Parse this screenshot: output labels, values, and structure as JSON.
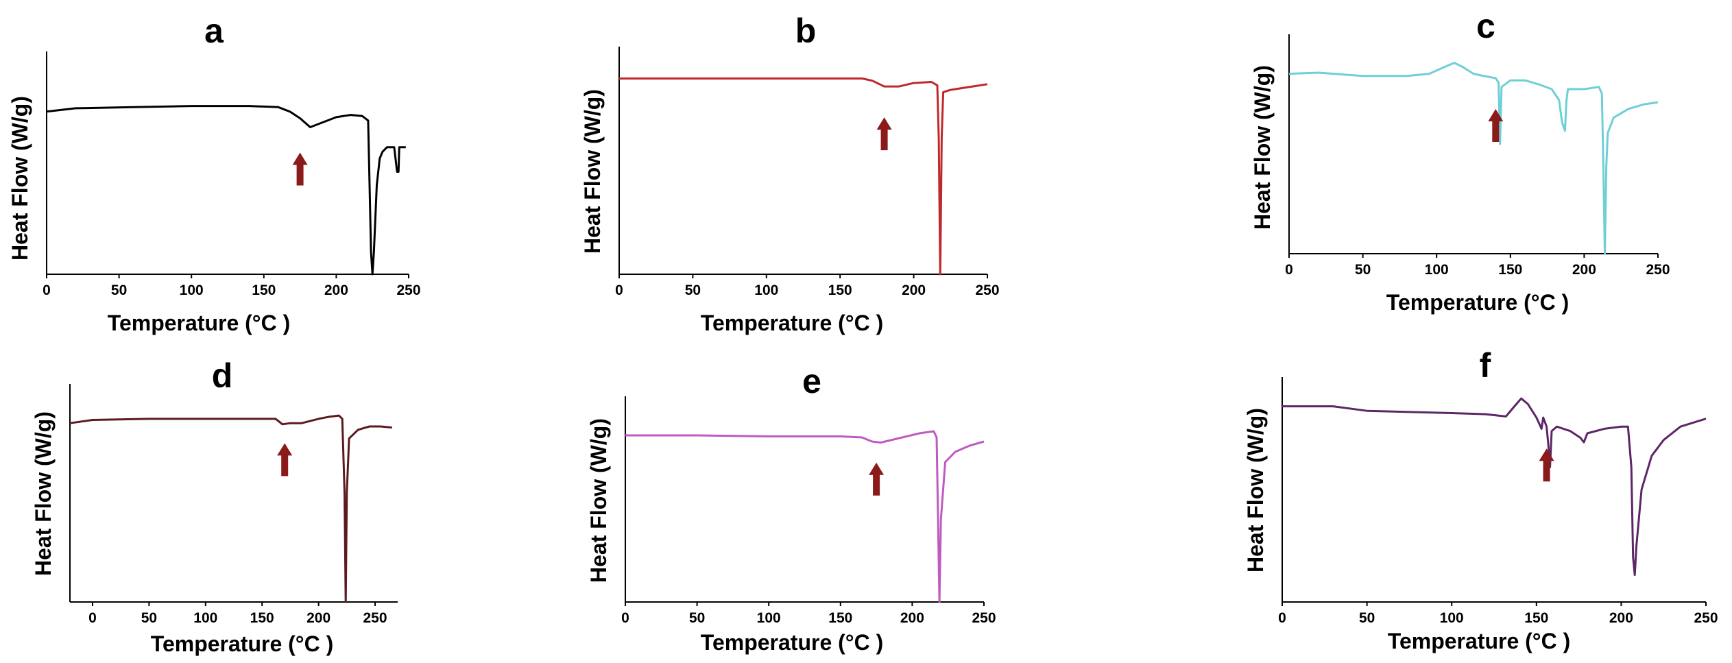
{
  "chart_data": [
    {
      "panel": "a",
      "type": "line",
      "xlabel": "Temperature (°C )",
      "ylabel": "Heat Flow (W/g)",
      "xlim": [
        0,
        250
      ],
      "ylim": [
        0,
        100
      ],
      "x_ticks": [
        0,
        50,
        100,
        150,
        200,
        250
      ],
      "color": "#000000",
      "arrow_x": 175,
      "series": [
        {
          "name": "a",
          "points": [
            [
              0,
              73
            ],
            [
              20,
              74.5
            ],
            [
              60,
              75
            ],
            [
              100,
              75.5
            ],
            [
              140,
              75.5
            ],
            [
              160,
              75
            ],
            [
              168,
              73
            ],
            [
              175,
              70
            ],
            [
              182,
              66
            ],
            [
              190,
              68
            ],
            [
              200,
              70.5
            ],
            [
              210,
              71.5
            ],
            [
              218,
              71
            ],
            [
              222,
              69
            ],
            [
              223,
              40
            ],
            [
              224,
              10
            ],
            [
              225,
              0
            ],
            [
              226,
              10
            ],
            [
              228,
              40
            ],
            [
              230,
              52
            ],
            [
              232,
              55
            ],
            [
              235,
              57
            ],
            [
              240,
              57
            ],
            [
              242,
              46
            ],
            [
              243,
              46
            ],
            [
              243.5,
              57
            ],
            [
              248,
              57
            ]
          ]
        }
      ]
    },
    {
      "panel": "b",
      "type": "line",
      "xlabel": "Temperature (°C )",
      "ylabel": "Heat Flow (W/g)",
      "xlim": [
        0,
        250
      ],
      "ylim": [
        0,
        100
      ],
      "x_ticks": [
        0,
        50,
        100,
        150,
        200,
        250
      ],
      "color": "#c0282c",
      "arrow_x": 180,
      "series": [
        {
          "name": "b",
          "points": [
            [
              0,
              86
            ],
            [
              50,
              86
            ],
            [
              100,
              86
            ],
            [
              150,
              86
            ],
            [
              165,
              86
            ],
            [
              172,
              85
            ],
            [
              180,
              82.5
            ],
            [
              190,
              82.5
            ],
            [
              200,
              84
            ],
            [
              212,
              84.5
            ],
            [
              216,
              83
            ],
            [
              217,
              60
            ],
            [
              218,
              0
            ],
            [
              219,
              60
            ],
            [
              220,
              80
            ],
            [
              225,
              81
            ],
            [
              240,
              82.5
            ],
            [
              250,
              83.5
            ]
          ]
        }
      ]
    },
    {
      "panel": "c",
      "type": "line",
      "xlabel": "Temperature (°C )",
      "ylabel": "Heat Flow (W/g)",
      "xlim": [
        0,
        250
      ],
      "ylim": [
        0,
        100
      ],
      "x_ticks": [
        0,
        50,
        100,
        150,
        200,
        250
      ],
      "color": "#6ecfd6",
      "arrow_x": 140,
      "series": [
        {
          "name": "c",
          "points": [
            [
              0,
              82
            ],
            [
              20,
              82.5
            ],
            [
              50,
              81
            ],
            [
              80,
              81
            ],
            [
              95,
              82
            ],
            [
              105,
              85
            ],
            [
              112,
              87
            ],
            [
              118,
              85
            ],
            [
              125,
              82
            ],
            [
              132,
              81
            ],
            [
              140,
              80
            ],
            [
              142,
              78
            ],
            [
              143,
              50
            ],
            [
              144,
              76
            ],
            [
              150,
              79
            ],
            [
              160,
              79
            ],
            [
              170,
              77
            ],
            [
              178,
              75
            ],
            [
              183,
              70
            ],
            [
              185,
              60
            ],
            [
              187,
              56
            ],
            [
              188,
              70
            ],
            [
              189,
              75
            ],
            [
              200,
              75
            ],
            [
              210,
              76
            ],
            [
              212,
              73
            ],
            [
              213,
              40
            ],
            [
              214,
              0
            ],
            [
              215,
              40
            ],
            [
              216,
              55
            ],
            [
              220,
              62
            ],
            [
              230,
              66
            ],
            [
              240,
              68
            ],
            [
              250,
              69
            ]
          ]
        }
      ]
    },
    {
      "panel": "d",
      "type": "line",
      "xlabel": "Temperature (°C )",
      "ylabel": "Heat Flow (W/g)",
      "xlim": [
        -20,
        270
      ],
      "ylim": [
        0,
        100
      ],
      "x_ticks": [
        0,
        50,
        100,
        150,
        200,
        250
      ],
      "color": "#5a1a1f",
      "arrow_x": 170,
      "series": [
        {
          "name": "d",
          "points": [
            [
              -20,
              82
            ],
            [
              0,
              83.5
            ],
            [
              50,
              84
            ],
            [
              100,
              84
            ],
            [
              150,
              84
            ],
            [
              162,
              84
            ],
            [
              168,
              81.5
            ],
            [
              175,
              82
            ],
            [
              185,
              82
            ],
            [
              200,
              84
            ],
            [
              210,
              85
            ],
            [
              218,
              85.5
            ],
            [
              221,
              84
            ],
            [
              223,
              50
            ],
            [
              224,
              0
            ],
            [
              225,
              50
            ],
            [
              227,
              75
            ],
            [
              235,
              79
            ],
            [
              245,
              80.5
            ],
            [
              255,
              80.5
            ],
            [
              265,
              80
            ]
          ]
        }
      ]
    },
    {
      "panel": "e",
      "type": "line",
      "xlabel": "Temperature (°C )",
      "ylabel": "Heat Flow (W/g)",
      "xlim": [
        0,
        250
      ],
      "ylim": [
        0,
        100
      ],
      "x_ticks": [
        0,
        50,
        100,
        150,
        200,
        250
      ],
      "color": "#c05ac0",
      "arrow_x": 175,
      "series": [
        {
          "name": "e",
          "points": [
            [
              0,
              81
            ],
            [
              50,
              81
            ],
            [
              100,
              80.5
            ],
            [
              150,
              80.5
            ],
            [
              165,
              80
            ],
            [
              172,
              78
            ],
            [
              178,
              77.5
            ],
            [
              190,
              79.5
            ],
            [
              205,
              82
            ],
            [
              215,
              83
            ],
            [
              217,
              80
            ],
            [
              218,
              40
            ],
            [
              219,
              0
            ],
            [
              220,
              40
            ],
            [
              223,
              68
            ],
            [
              230,
              73
            ],
            [
              240,
              76
            ],
            [
              250,
              78
            ]
          ]
        }
      ]
    },
    {
      "panel": "f",
      "type": "line",
      "xlabel": "Temperature (°C )",
      "ylabel": "Heat Flow (W/g)",
      "xlim": [
        0,
        250
      ],
      "ylim": [
        0,
        100
      ],
      "x_ticks": [
        0,
        50,
        100,
        150,
        200,
        250
      ],
      "color": "#5d2666",
      "arrow_x": 156,
      "series": [
        {
          "name": "f",
          "points": [
            [
              0,
              87
            ],
            [
              30,
              87
            ],
            [
              50,
              85
            ],
            [
              100,
              84
            ],
            [
              120,
              83.5
            ],
            [
              132,
              82.5
            ],
            [
              137,
              87
            ],
            [
              141,
              90.5
            ],
            [
              145,
              88
            ],
            [
              150,
              82
            ],
            [
              153,
              77
            ],
            [
              154,
              82
            ],
            [
              156,
              78
            ],
            [
              157,
              70
            ],
            [
              158,
              60
            ],
            [
              159,
              76
            ],
            [
              162,
              78
            ],
            [
              170,
              76
            ],
            [
              176,
              73
            ],
            [
              178,
              71
            ],
            [
              180,
              75
            ],
            [
              190,
              77
            ],
            [
              200,
              78
            ],
            [
              204,
              78
            ],
            [
              206,
              60
            ],
            [
              207,
              20
            ],
            [
              208,
              12
            ],
            [
              209,
              25
            ],
            [
              212,
              50
            ],
            [
              218,
              65
            ],
            [
              225,
              72
            ],
            [
              235,
              78
            ],
            [
              250,
              81.5
            ]
          ]
        }
      ]
    }
  ]
}
